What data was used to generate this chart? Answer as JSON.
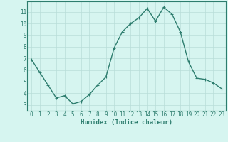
{
  "x": [
    0,
    1,
    2,
    3,
    4,
    5,
    6,
    7,
    8,
    9,
    10,
    11,
    12,
    13,
    14,
    15,
    16,
    17,
    18,
    19,
    20,
    21,
    22,
    23
  ],
  "y": [
    6.9,
    5.8,
    4.7,
    3.6,
    3.8,
    3.1,
    3.3,
    3.9,
    4.7,
    5.4,
    7.9,
    9.3,
    10.0,
    10.5,
    11.3,
    10.2,
    11.4,
    10.8,
    9.3,
    6.7,
    5.3,
    5.2,
    4.9,
    4.4
  ],
  "line_color": "#2d7d6e",
  "marker": "+",
  "marker_size": 3,
  "bg_color": "#d6f5f0",
  "grid_color": "#b8ddd8",
  "axis_label_color": "#2d7d6e",
  "xlabel": "Humidex (Indice chaleur)",
  "xlim": [
    -0.5,
    23.5
  ],
  "ylim": [
    2.5,
    11.9
  ],
  "yticks": [
    3,
    4,
    5,
    6,
    7,
    8,
    9,
    10,
    11
  ],
  "xticks": [
    0,
    1,
    2,
    3,
    4,
    5,
    6,
    7,
    8,
    9,
    10,
    11,
    12,
    13,
    14,
    15,
    16,
    17,
    18,
    19,
    20,
    21,
    22,
    23
  ],
  "tick_label_color": "#2d7d6e",
  "spine_color": "#2d7d6e",
  "linewidth": 1.0,
  "tick_fontsize": 5.5,
  "xlabel_fontsize": 6.5
}
